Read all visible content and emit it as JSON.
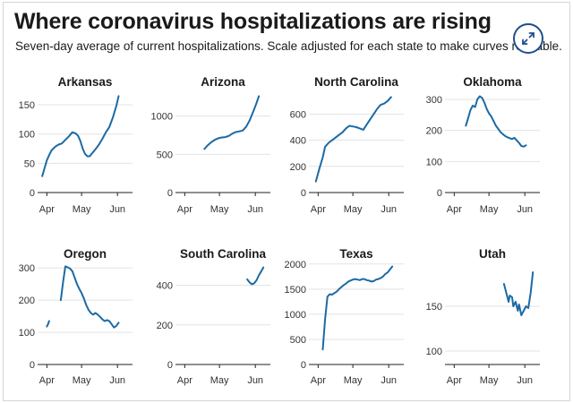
{
  "header": {
    "title": "Where coronavirus hospitalizations are rising",
    "subtitle": "Seven-day average of current hospitalizations. Scale adjusted for each state to make curves readable.",
    "expand_icon": "expand-arrows-icon"
  },
  "colors": {
    "line": "#1c6aa4",
    "grid": "#e3e3e3",
    "axis": "#222222",
    "accent": "#1f4e8c"
  },
  "chart_data": [
    {
      "type": "line",
      "title": "Arkansas",
      "x_ticks": [
        {
          "label": "Apr",
          "day": 0
        },
        {
          "label": "May",
          "day": 30
        },
        {
          "label": "Jun",
          "day": 61
        }
      ],
      "xlim": [
        -8,
        74
      ],
      "ylim": [
        0,
        170
      ],
      "y_ticks": [
        0,
        50,
        100,
        150
      ],
      "series": [
        {
          "values": [
            [
              -4,
              28
            ],
            [
              -2,
              42
            ],
            [
              0,
              55
            ],
            [
              2,
              64
            ],
            [
              4,
              72
            ],
            [
              7,
              78
            ],
            [
              10,
              82
            ],
            [
              13,
              84
            ],
            [
              16,
              90
            ],
            [
              19,
              96
            ],
            [
              22,
              103
            ],
            [
              25,
              101
            ],
            [
              27,
              97
            ],
            [
              29,
              88
            ],
            [
              31,
              75
            ],
            [
              33,
              66
            ],
            [
              35,
              62
            ],
            [
              37,
              62
            ],
            [
              39,
              67
            ],
            [
              42,
              74
            ],
            [
              45,
              82
            ],
            [
              48,
              92
            ],
            [
              51,
              103
            ],
            [
              54,
              112
            ],
            [
              57,
              128
            ],
            [
              60,
              148
            ],
            [
              62,
              165
            ]
          ]
        }
      ]
    },
    {
      "type": "line",
      "title": "Arizona",
      "x_ticks": [
        {
          "label": "Apr",
          "day": 0
        },
        {
          "label": "May",
          "day": 30
        },
        {
          "label": "Jun",
          "day": 61
        }
      ],
      "xlim": [
        -8,
        74
      ],
      "ylim": [
        0,
        1300
      ],
      "y_ticks": [
        0,
        500,
        1000
      ],
      "series": [
        {
          "values": [
            [
              17,
              570
            ],
            [
              20,
              620
            ],
            [
              23,
              660
            ],
            [
              26,
              690
            ],
            [
              29,
              710
            ],
            [
              32,
              720
            ],
            [
              35,
              725
            ],
            [
              38,
              740
            ],
            [
              41,
              770
            ],
            [
              44,
              790
            ],
            [
              47,
              800
            ],
            [
              50,
              810
            ],
            [
              53,
              860
            ],
            [
              56,
              940
            ],
            [
              59,
              1050
            ],
            [
              62,
              1170
            ],
            [
              64,
              1260
            ]
          ]
        }
      ]
    },
    {
      "type": "line",
      "title": "North Carolina",
      "x_ticks": [
        {
          "label": "Apr",
          "day": 0
        },
        {
          "label": "May",
          "day": 30
        },
        {
          "label": "Jun",
          "day": 61
        }
      ],
      "xlim": [
        -8,
        74
      ],
      "ylim": [
        0,
        760
      ],
      "y_ticks": [
        0,
        200,
        400,
        600
      ],
      "series": [
        {
          "values": [
            [
              -2,
              85
            ],
            [
              1,
              180
            ],
            [
              4,
              270
            ],
            [
              6,
              350
            ],
            [
              9,
              380
            ],
            [
              12,
              400
            ],
            [
              15,
              420
            ],
            [
              18,
              440
            ],
            [
              21,
              460
            ],
            [
              24,
              490
            ],
            [
              27,
              510
            ],
            [
              30,
              505
            ],
            [
              33,
              500
            ],
            [
              36,
              490
            ],
            [
              39,
              480
            ],
            [
              42,
              520
            ],
            [
              45,
              560
            ],
            [
              48,
              600
            ],
            [
              51,
              640
            ],
            [
              54,
              670
            ],
            [
              57,
              680
            ],
            [
              60,
              700
            ],
            [
              63,
              730
            ]
          ]
        }
      ]
    },
    {
      "type": "line",
      "title": "Oklahoma",
      "x_ticks": [
        {
          "label": "Apr",
          "day": 0
        },
        {
          "label": "May",
          "day": 30
        },
        {
          "label": "Jun",
          "day": 61
        }
      ],
      "xlim": [
        -8,
        74
      ],
      "ylim": [
        0,
        320
      ],
      "y_ticks": [
        0,
        100,
        200,
        300
      ],
      "series": [
        {
          "values": [
            [
              10,
              215
            ],
            [
              12,
              240
            ],
            [
              14,
              265
            ],
            [
              16,
              280
            ],
            [
              18,
              275
            ],
            [
              20,
              300
            ],
            [
              22,
              310
            ],
            [
              24,
              305
            ],
            [
              26,
              290
            ],
            [
              28,
              270
            ],
            [
              30,
              255
            ],
            [
              32,
              245
            ],
            [
              34,
              230
            ],
            [
              36,
              215
            ],
            [
              38,
              205
            ],
            [
              40,
              195
            ],
            [
              42,
              188
            ],
            [
              44,
              182
            ],
            [
              46,
              178
            ],
            [
              48,
              175
            ],
            [
              50,
              172
            ],
            [
              52,
              176
            ],
            [
              54,
              168
            ],
            [
              56,
              160
            ],
            [
              58,
              150
            ],
            [
              60,
              148
            ],
            [
              62,
              152
            ]
          ]
        }
      ]
    },
    {
      "type": "line",
      "title": "Oregon",
      "x_ticks": [
        {
          "label": "Apr",
          "day": 0
        },
        {
          "label": "May",
          "day": 30
        },
        {
          "label": "Jun",
          "day": 61
        }
      ],
      "xlim": [
        -8,
        74
      ],
      "ylim": [
        0,
        320
      ],
      "y_ticks": [
        0,
        100,
        200,
        300
      ],
      "series": [
        {
          "values": [
            [
              0,
              118
            ],
            [
              1,
              125
            ],
            [
              2,
              135
            ]
          ]
        },
        {
          "values": [
            [
              12,
              200
            ],
            [
              14,
              255
            ],
            [
              16,
              305
            ],
            [
              18,
              302
            ],
            [
              20,
              298
            ],
            [
              22,
              290
            ],
            [
              24,
              270
            ],
            [
              26,
              250
            ],
            [
              28,
              235
            ],
            [
              30,
              222
            ],
            [
              32,
              205
            ],
            [
              34,
              185
            ],
            [
              36,
              170
            ],
            [
              38,
              160
            ],
            [
              40,
              155
            ],
            [
              42,
              160
            ],
            [
              44,
              155
            ],
            [
              46,
              148
            ],
            [
              48,
              140
            ],
            [
              50,
              135
            ],
            [
              52,
              138
            ],
            [
              54,
              135
            ],
            [
              56,
              125
            ],
            [
              58,
              115
            ],
            [
              60,
              120
            ],
            [
              62,
              130
            ]
          ]
        }
      ]
    },
    {
      "type": "line",
      "title": "South Carolina",
      "x_ticks": [
        {
          "label": "Apr",
          "day": 0
        },
        {
          "label": "May",
          "day": 30
        },
        {
          "label": "Jun",
          "day": 61
        }
      ],
      "xlim": [
        -8,
        74
      ],
      "ylim": [
        0,
        520
      ],
      "y_ticks": [
        0,
        200,
        400
      ],
      "series": [
        {
          "values": [
            [
              54,
              430
            ],
            [
              56,
              415
            ],
            [
              58,
              405
            ],
            [
              60,
              410
            ],
            [
              62,
              425
            ],
            [
              64,
              450
            ],
            [
              66,
              470
            ],
            [
              68,
              490
            ]
          ]
        }
      ]
    },
    {
      "type": "line",
      "title": "Texas",
      "x_ticks": [
        {
          "label": "Apr",
          "day": 0
        },
        {
          "label": "May",
          "day": 30
        },
        {
          "label": "Jun",
          "day": 61
        }
      ],
      "xlim": [
        -8,
        74
      ],
      "ylim": [
        0,
        2050
      ],
      "y_ticks": [
        0,
        500,
        1000,
        1500,
        2000
      ],
      "series": [
        {
          "values": [
            [
              4,
              300
            ],
            [
              6,
              900
            ],
            [
              8,
              1350
            ],
            [
              10,
              1400
            ],
            [
              12,
              1390
            ],
            [
              14,
              1420
            ],
            [
              16,
              1450
            ],
            [
              18,
              1500
            ],
            [
              20,
              1540
            ],
            [
              22,
              1580
            ],
            [
              24,
              1610
            ],
            [
              26,
              1650
            ],
            [
              28,
              1670
            ],
            [
              30,
              1690
            ],
            [
              32,
              1700
            ],
            [
              34,
              1690
            ],
            [
              36,
              1680
            ],
            [
              38,
              1700
            ],
            [
              40,
              1700
            ],
            [
              42,
              1680
            ],
            [
              44,
              1670
            ],
            [
              46,
              1650
            ],
            [
              48,
              1660
            ],
            [
              50,
              1690
            ],
            [
              52,
              1700
            ],
            [
              54,
              1720
            ],
            [
              56,
              1750
            ],
            [
              58,
              1800
            ],
            [
              60,
              1830
            ],
            [
              62,
              1890
            ],
            [
              64,
              1950
            ]
          ]
        }
      ]
    },
    {
      "type": "line",
      "title": "Utah",
      "x_ticks": [
        {
          "label": "Apr",
          "day": 0
        },
        {
          "label": "May",
          "day": 30
        },
        {
          "label": "Jun",
          "day": 61
        }
      ],
      "xlim": [
        -8,
        74
      ],
      "ylim": [
        85,
        200
      ],
      "y_ticks": [
        100,
        150
      ],
      "series": [
        {
          "values": [
            [
              43,
              175
            ],
            [
              45,
              165
            ],
            [
              47,
              155
            ],
            [
              48,
              162
            ],
            [
              50,
              160
            ],
            [
              51,
              150
            ],
            [
              53,
              155
            ],
            [
              55,
              145
            ],
            [
              56,
              152
            ],
            [
              58,
              140
            ],
            [
              60,
              145
            ],
            [
              62,
              150
            ],
            [
              64,
              148
            ],
            [
              66,
              165
            ],
            [
              68,
              188
            ]
          ]
        }
      ]
    }
  ]
}
